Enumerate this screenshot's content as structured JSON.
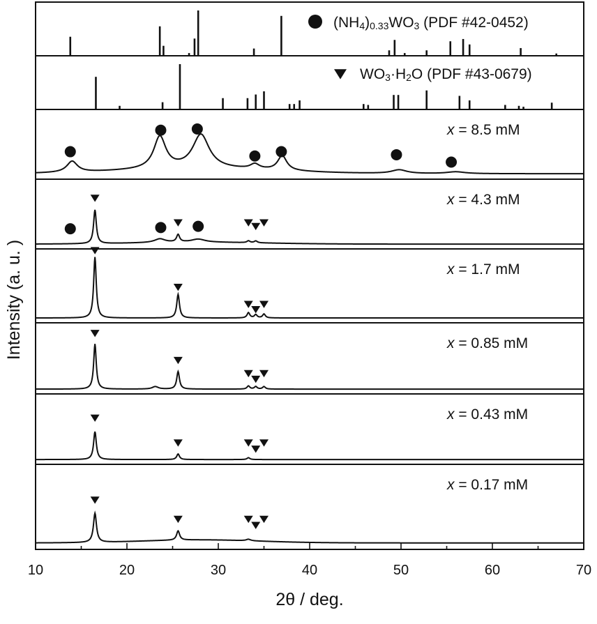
{
  "chart_data": {
    "type": "line",
    "xlabel": "2θ / deg.",
    "ylabel": "Intensity (a. u. )",
    "xlim": [
      10,
      70
    ],
    "x_ticks": [
      "10",
      "20",
      "30",
      "40",
      "50",
      "60",
      "70"
    ],
    "reference_patterns": [
      {
        "name": "(NH4)0.33WO3 (PDF #42-0452)",
        "label_parts": {
          "main": "(NH",
          "sub1": "4",
          "mid": ")",
          "sub2": "0.33",
          "tail": "WO",
          "sub3": "3",
          "end": " (PDF #42-0452)"
        },
        "marker": "circle",
        "lines": [
          {
            "x": 13.8,
            "h": 0.42
          },
          {
            "x": 23.6,
            "h": 0.65
          },
          {
            "x": 24.0,
            "h": 0.22
          },
          {
            "x": 26.8,
            "h": 0.06
          },
          {
            "x": 27.4,
            "h": 0.38
          },
          {
            "x": 27.8,
            "h": 1.0
          },
          {
            "x": 33.9,
            "h": 0.16
          },
          {
            "x": 36.9,
            "h": 0.88
          },
          {
            "x": 48.7,
            "h": 0.12
          },
          {
            "x": 49.3,
            "h": 0.35
          },
          {
            "x": 50.4,
            "h": 0.06
          },
          {
            "x": 52.8,
            "h": 0.12
          },
          {
            "x": 55.4,
            "h": 0.32
          },
          {
            "x": 56.8,
            "h": 0.37
          },
          {
            "x": 57.5,
            "h": 0.25
          },
          {
            "x": 63.1,
            "h": 0.17
          },
          {
            "x": 67.0,
            "h": 0.05
          }
        ]
      },
      {
        "name": "WO3·H2O (PDF #43-0679)",
        "label_parts": {
          "main": "WO",
          "sub1": "3",
          "mid": "·H",
          "sub2": "2",
          "tail": "O (PDF #43-0679)"
        },
        "marker": "triangle",
        "lines": [
          {
            "x": 16.6,
            "h": 0.72
          },
          {
            "x": 19.2,
            "h": 0.08
          },
          {
            "x": 23.9,
            "h": 0.16
          },
          {
            "x": 25.8,
            "h": 1.0
          },
          {
            "x": 30.5,
            "h": 0.25
          },
          {
            "x": 33.2,
            "h": 0.25
          },
          {
            "x": 34.1,
            "h": 0.33
          },
          {
            "x": 35.0,
            "h": 0.4
          },
          {
            "x": 37.8,
            "h": 0.12
          },
          {
            "x": 38.3,
            "h": 0.12
          },
          {
            "x": 38.9,
            "h": 0.2
          },
          {
            "x": 45.9,
            "h": 0.12
          },
          {
            "x": 46.4,
            "h": 0.1
          },
          {
            "x": 49.2,
            "h": 0.32
          },
          {
            "x": 49.7,
            "h": 0.32
          },
          {
            "x": 52.8,
            "h": 0.42
          },
          {
            "x": 56.4,
            "h": 0.3
          },
          {
            "x": 57.5,
            "h": 0.2
          },
          {
            "x": 61.4,
            "h": 0.1
          },
          {
            "x": 62.9,
            "h": 0.08
          },
          {
            "x": 63.4,
            "h": 0.06
          },
          {
            "x": 66.5,
            "h": 0.15
          }
        ]
      }
    ],
    "series": [
      {
        "name": "x = 8.5 mM",
        "label_var": "x",
        "label_rest": " = 8.5 mM",
        "baseline": 0.02,
        "peaks": [
          {
            "x": 14.0,
            "h": 0.18,
            "w": 0.7
          },
          {
            "x": 23.6,
            "h": 0.52,
            "w": 0.8
          },
          {
            "x": 28.1,
            "h": 0.55,
            "w": 1.1
          },
          {
            "x": 34.0,
            "h": 0.08,
            "w": 0.6
          },
          {
            "x": 37.0,
            "h": 0.24,
            "w": 0.6
          },
          {
            "x": 49.8,
            "h": 0.06,
            "w": 1.0
          },
          {
            "x": 56.0,
            "h": 0.03,
            "w": 1.2
          }
        ],
        "hump": {
          "x": 28,
          "h": 0.08,
          "w": 12
        },
        "circle_markers": [
          {
            "x": 13.8,
            "y": 0.38
          },
          {
            "x": 23.7,
            "y": 0.73
          },
          {
            "x": 27.7,
            "y": 0.75
          },
          {
            "x": 34.0,
            "y": 0.31
          },
          {
            "x": 36.9,
            "y": 0.38
          },
          {
            "x": 49.5,
            "y": 0.33
          },
          {
            "x": 55.5,
            "y": 0.21
          }
        ],
        "triangle_markers": []
      },
      {
        "name": "x = 4.3 mM",
        "label_var": "x",
        "label_rest": " = 4.3 mM",
        "baseline": 0.01,
        "peaks": [
          {
            "x": 16.5,
            "h": 0.55,
            "w": 0.18
          },
          {
            "x": 25.6,
            "h": 0.12,
            "w": 0.2
          },
          {
            "x": 23.6,
            "h": 0.06,
            "w": 0.7
          },
          {
            "x": 27.8,
            "h": 0.05,
            "w": 0.9
          },
          {
            "x": 33.3,
            "h": 0.03,
            "w": 0.2
          },
          {
            "x": 34.1,
            "h": 0.03,
            "w": 0.2
          }
        ],
        "hump": {
          "x": 28,
          "h": 0.03,
          "w": 10
        },
        "circle_markers": [
          {
            "x": 13.8,
            "y": 0.26
          },
          {
            "x": 23.7,
            "y": 0.28
          },
          {
            "x": 27.8,
            "y": 0.3
          }
        ],
        "triangle_markers": [
          {
            "x": 16.5,
            "y": 0.76
          },
          {
            "x": 25.6,
            "y": 0.36
          },
          {
            "x": 33.3,
            "y": 0.36
          },
          {
            "x": 34.1,
            "y": 0.3
          },
          {
            "x": 35.0,
            "y": 0.36
          }
        ]
      },
      {
        "name": "x = 1.7 mM",
        "label_var": "x",
        "label_rest": " = 1.7 mM",
        "baseline": 0.01,
        "peaks": [
          {
            "x": 16.5,
            "h": 0.93,
            "w": 0.17
          },
          {
            "x": 25.6,
            "h": 0.36,
            "w": 0.18
          },
          {
            "x": 33.3,
            "h": 0.08,
            "w": 0.18
          },
          {
            "x": 34.1,
            "h": 0.05,
            "w": 0.18
          },
          {
            "x": 35.0,
            "h": 0.06,
            "w": 0.18
          }
        ],
        "hump": {
          "x": 28,
          "h": 0.0,
          "w": 10
        },
        "circle_markers": [],
        "triangle_markers": [
          {
            "x": 16.5,
            "y": 1.04
          },
          {
            "x": 25.6,
            "y": 0.48
          },
          {
            "x": 33.3,
            "y": 0.22
          },
          {
            "x": 34.1,
            "y": 0.14
          },
          {
            "x": 35.0,
            "y": 0.22
          }
        ]
      },
      {
        "name": "x = 0.85 mM",
        "label_var": "x",
        "label_rest": " = 0.85 mM",
        "baseline": 0.01,
        "peaks": [
          {
            "x": 16.5,
            "h": 0.72,
            "w": 0.17
          },
          {
            "x": 25.6,
            "h": 0.28,
            "w": 0.18
          },
          {
            "x": 23.1,
            "h": 0.04,
            "w": 0.4
          },
          {
            "x": 33.3,
            "h": 0.05,
            "w": 0.18
          },
          {
            "x": 34.1,
            "h": 0.04,
            "w": 0.18
          },
          {
            "x": 35.0,
            "h": 0.04,
            "w": 0.18
          }
        ],
        "hump": {
          "x": 28,
          "h": 0.0,
          "w": 10
        },
        "circle_markers": [],
        "triangle_markers": [
          {
            "x": 16.5,
            "y": 0.9
          },
          {
            "x": 25.6,
            "y": 0.47
          },
          {
            "x": 33.3,
            "y": 0.26
          },
          {
            "x": 34.1,
            "y": 0.17
          },
          {
            "x": 35.0,
            "y": 0.26
          }
        ]
      },
      {
        "name": "x = 0.43 mM",
        "label_var": "x",
        "label_rest": " = 0.43 mM",
        "baseline": 0.01,
        "peaks": [
          {
            "x": 16.5,
            "h": 0.45,
            "w": 0.18
          },
          {
            "x": 25.6,
            "h": 0.09,
            "w": 0.18
          },
          {
            "x": 33.3,
            "h": 0.03,
            "w": 0.18
          }
        ],
        "hump": {
          "x": 28,
          "h": 0.0,
          "w": 10
        },
        "circle_markers": [],
        "triangle_markers": [
          {
            "x": 16.5,
            "y": 0.68
          },
          {
            "x": 25.6,
            "y": 0.28
          },
          {
            "x": 33.3,
            "y": 0.28
          },
          {
            "x": 34.1,
            "y": 0.18
          },
          {
            "x": 35.0,
            "y": 0.28
          }
        ]
      },
      {
        "name": "x = 0.17 mM",
        "label_var": "x",
        "label_rest": " = 0.17 mM",
        "baseline": 0.03,
        "peaks": [
          {
            "x": 16.5,
            "h": 0.38,
            "w": 0.2
          },
          {
            "x": 25.6,
            "h": 0.12,
            "w": 0.2
          },
          {
            "x": 33.3,
            "h": 0.02,
            "w": 0.3
          }
        ],
        "hump": {
          "x": 28,
          "h": 0.04,
          "w": 9
        },
        "circle_markers": [],
        "triangle_markers": [
          {
            "x": 16.5,
            "y": 0.59
          },
          {
            "x": 25.6,
            "y": 0.34
          },
          {
            "x": 33.3,
            "y": 0.34
          },
          {
            "x": 34.1,
            "y": 0.26
          },
          {
            "x": 35.0,
            "y": 0.34
          }
        ]
      }
    ],
    "grid": false,
    "legend": "top-right"
  }
}
